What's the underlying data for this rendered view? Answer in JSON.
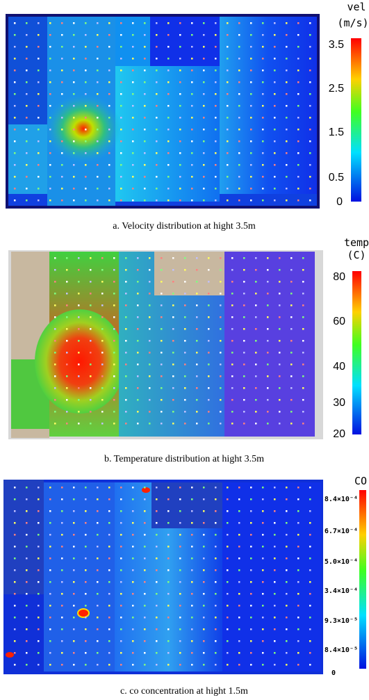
{
  "panels": [
    {
      "colorbar": {
        "title": "vel",
        "unit": "(m/s)",
        "labels": [
          "3.5",
          "2.5",
          "1.5",
          "0.5",
          "0"
        ]
      },
      "caption": "a.  Velocity  distribution  at  hight  3.5m"
    },
    {
      "colorbar": {
        "title": "temp",
        "unit": "(C)",
        "labels": [
          "80",
          "60",
          "40",
          "30",
          "20"
        ]
      },
      "caption": "b.  Temperature  distribution  at  hight  3.5m"
    },
    {
      "colorbar": {
        "title": "CO",
        "labels": [
          "8.4×10⁻⁴",
          "6.7×10⁻⁴",
          "5.0×10⁻⁴",
          "3.4×10⁻⁴",
          "9.3×10⁻⁵",
          "8.4×10⁻⁵",
          "0"
        ]
      },
      "caption": "c.  co  concentration  at  hight  1.5m"
    }
  ]
}
